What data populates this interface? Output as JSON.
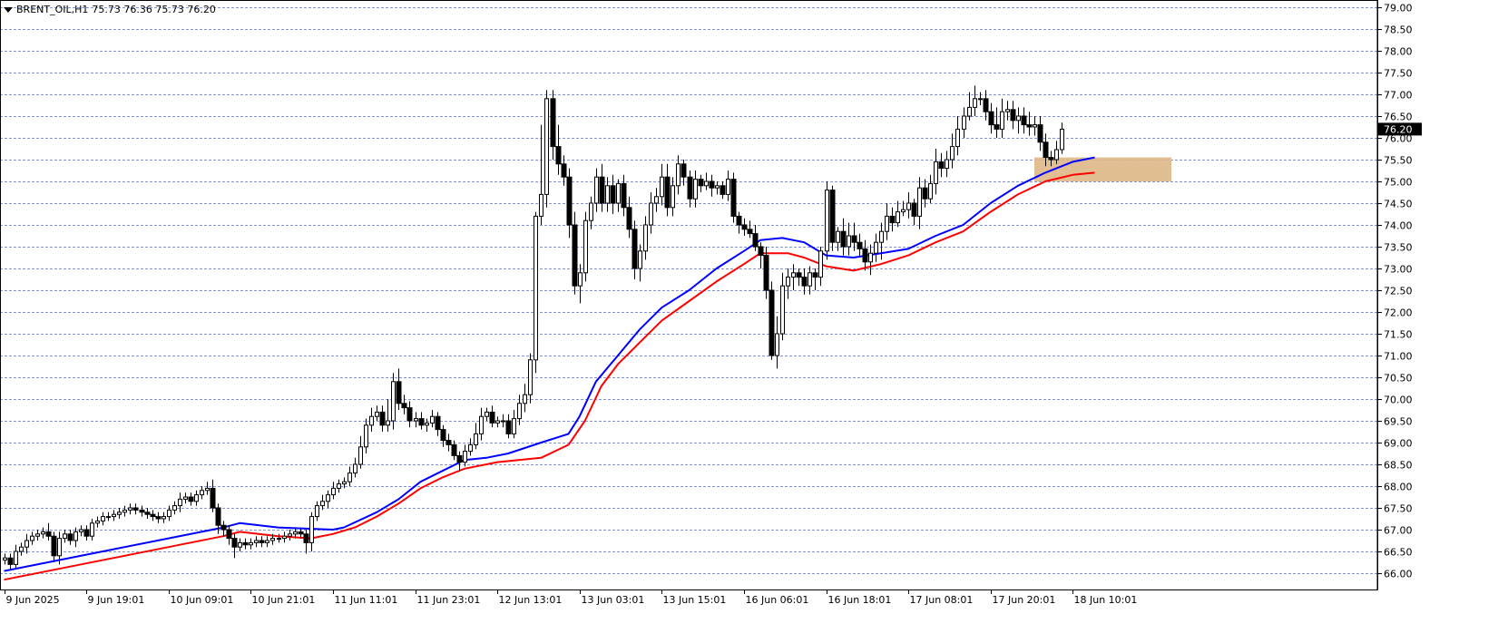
{
  "header": {
    "symbol": "BRENT_OIL,H1",
    "ohlc": "75.73 76.36 75.73 76.20"
  },
  "price_scale": {
    "current_price_label": "76.20"
  },
  "colors": {
    "grid": "#1f3fbf",
    "candle": "#000000",
    "ema_fast": "#0000ff",
    "ema_slow": "#ff0000",
    "zone": "#deb887",
    "label_bg": "#000000",
    "label_text": "#ffffff"
  },
  "chart_data": {
    "type": "candlestick",
    "title": "BRENT_OIL,H1",
    "y_axis": {
      "range": [
        65.9,
        79.05
      ],
      "ticks": [
        "66.00",
        "66.50",
        "67.00",
        "67.50",
        "68.00",
        "68.50",
        "69.00",
        "69.50",
        "70.00",
        "70.50",
        "71.00",
        "71.50",
        "72.00",
        "72.50",
        "73.00",
        "73.50",
        "74.00",
        "74.50",
        "75.00",
        "75.50",
        "76.00",
        "76.50",
        "77.00",
        "77.50",
        "78.00",
        "78.50",
        "79.00"
      ]
    },
    "x_axis": {
      "labels": [
        "9 Jun 2025",
        "9 Jun 19:01",
        "10 Jun 09:01",
        "10 Jun 21:01",
        "11 Jun 11:01",
        "11 Jun 23:01",
        "12 Jun 13:01",
        "13 Jun 03:01",
        "13 Jun 15:01",
        "16 Jun 06:01",
        "16 Jun 18:01",
        "17 Jun 08:01",
        "17 Jun 20:01",
        "18 Jun 10:01"
      ],
      "label_bar_index": [
        0,
        15,
        30,
        45,
        60,
        75,
        90,
        105,
        120,
        135,
        150,
        165,
        180,
        195
      ]
    },
    "grid": true,
    "series": [
      {
        "name": "Fast MA",
        "color": "#0000ff",
        "values": [
          [
            0,
            66.05
          ],
          [
            10,
            66.3
          ],
          [
            20,
            66.55
          ],
          [
            30,
            66.8
          ],
          [
            40,
            67.05
          ],
          [
            43,
            67.15
          ],
          [
            50,
            67.05
          ],
          [
            60,
            67.0
          ],
          [
            62,
            67.05
          ],
          [
            68,
            67.4
          ],
          [
            72,
            67.7
          ],
          [
            76,
            68.1
          ],
          [
            80,
            68.35
          ],
          [
            84,
            68.6
          ],
          [
            88,
            68.65
          ],
          [
            92,
            68.75
          ],
          [
            98,
            69.0
          ],
          [
            103,
            69.2
          ],
          [
            105,
            69.6
          ],
          [
            108,
            70.4
          ],
          [
            112,
            71.0
          ],
          [
            116,
            71.6
          ],
          [
            120,
            72.1
          ],
          [
            125,
            72.5
          ],
          [
            130,
            73.0
          ],
          [
            135,
            73.4
          ],
          [
            138,
            73.65
          ],
          [
            142,
            73.7
          ],
          [
            146,
            73.6
          ],
          [
            150,
            73.3
          ],
          [
            155,
            73.25
          ],
          [
            160,
            73.35
          ],
          [
            165,
            73.45
          ],
          [
            170,
            73.75
          ],
          [
            175,
            74.0
          ],
          [
            180,
            74.5
          ],
          [
            185,
            74.9
          ],
          [
            190,
            75.2
          ],
          [
            195,
            75.45
          ],
          [
            199,
            75.55
          ]
        ]
      },
      {
        "name": "Slow MA",
        "color": "#ff0000",
        "values": [
          [
            0,
            65.85
          ],
          [
            10,
            66.1
          ],
          [
            20,
            66.35
          ],
          [
            30,
            66.6
          ],
          [
            40,
            66.85
          ],
          [
            43,
            66.95
          ],
          [
            50,
            66.85
          ],
          [
            56,
            66.8
          ],
          [
            60,
            66.9
          ],
          [
            64,
            67.05
          ],
          [
            68,
            67.3
          ],
          [
            72,
            67.6
          ],
          [
            76,
            67.95
          ],
          [
            80,
            68.2
          ],
          [
            84,
            68.4
          ],
          [
            90,
            68.55
          ],
          [
            98,
            68.65
          ],
          [
            103,
            68.95
          ],
          [
            106,
            69.5
          ],
          [
            109,
            70.3
          ],
          [
            112,
            70.8
          ],
          [
            116,
            71.3
          ],
          [
            120,
            71.8
          ],
          [
            125,
            72.25
          ],
          [
            130,
            72.7
          ],
          [
            135,
            73.1
          ],
          [
            138,
            73.35
          ],
          [
            143,
            73.35
          ],
          [
            146,
            73.25
          ],
          [
            150,
            73.05
          ],
          [
            155,
            72.95
          ],
          [
            160,
            73.1
          ],
          [
            165,
            73.3
          ],
          [
            170,
            73.6
          ],
          [
            175,
            73.85
          ],
          [
            180,
            74.3
          ],
          [
            185,
            74.7
          ],
          [
            190,
            75.0
          ],
          [
            195,
            75.15
          ],
          [
            199,
            75.2
          ]
        ]
      }
    ],
    "candles": {
      "start": [
        66.3,
        66.35,
        66.2,
        66.5,
        66.6,
        66.75,
        66.85,
        66.9,
        66.95,
        66.85,
        66.4,
        66.8,
        66.9,
        66.75,
        66.95,
        67.0,
        66.85,
        67.15,
        67.2,
        67.3,
        67.3,
        67.35,
        67.4,
        67.45,
        67.5,
        67.45,
        67.4,
        67.35,
        67.3,
        67.25,
        67.3,
        67.45,
        67.55,
        67.7,
        67.75,
        67.65,
        67.8,
        67.9,
        67.95,
        67.5,
        67.1,
        67.0,
        66.8,
        66.6,
        66.7,
        66.65,
        66.7,
        66.75,
        66.7,
        66.75,
        66.8,
        66.8,
        66.85,
        66.9,
        66.95,
        66.9,
        66.7,
        67.3,
        67.55,
        67.65,
        67.8,
        67.95,
        68.05,
        68.1,
        68.3,
        68.5,
        68.9,
        69.4,
        69.6,
        69.7,
        69.4,
        69.5,
        70.4,
        69.9,
        69.8,
        69.5,
        69.55,
        69.4,
        69.45,
        69.6,
        69.3,
        69.05,
        68.95,
        68.7,
        68.55,
        68.8,
        68.95,
        69.2,
        69.6,
        69.7,
        69.45,
        69.5,
        69.5,
        69.2,
        69.55,
        69.9,
        70.1,
        70.9,
        74.2,
        74.7,
        76.9,
        75.8,
        75.4,
        75.1,
        74.0,
        72.6,
        72.9,
        74.1,
        74.5,
        75.1,
        74.5,
        74.9,
        74.5,
        74.95,
        74.4,
        73.9,
        73.0,
        73.4,
        74.0,
        74.5,
        74.65,
        75.1,
        74.4,
        74.9,
        75.4,
        75.1,
        74.6,
        75.05,
        74.9,
        75.0,
        74.85,
        74.9,
        74.7,
        75.05,
        74.2,
        74.0,
        73.9,
        73.8,
        73.5,
        73.3,
        72.5,
        71.0,
        71.5,
        72.6,
        72.8,
        72.9,
        72.8,
        72.6,
        72.9,
        72.8,
        73.4,
        74.8,
        73.6,
        73.85,
        73.5,
        73.75,
        73.6,
        73.45,
        73.15,
        73.35,
        73.6,
        73.85,
        74.2,
        74.05,
        74.3,
        74.35,
        74.5,
        74.2,
        74.85,
        74.6,
        74.95,
        75.45,
        75.3,
        75.5,
        75.8,
        76.2,
        76.5,
        76.7,
        76.9,
        76.9,
        76.6,
        76.3,
        76.2,
        76.6,
        76.65,
        76.4,
        76.5,
        76.3,
        76.25,
        76.3,
        75.9,
        75.55,
        75.5,
        75.73
      ],
      "end": [
        66.35,
        66.2,
        66.5,
        66.6,
        66.75,
        66.85,
        66.9,
        66.95,
        66.85,
        66.4,
        66.8,
        66.9,
        66.75,
        66.95,
        67.0,
        66.85,
        67.15,
        67.2,
        67.3,
        67.3,
        67.35,
        67.4,
        67.45,
        67.5,
        67.45,
        67.4,
        67.35,
        67.3,
        67.25,
        67.3,
        67.45,
        67.55,
        67.7,
        67.75,
        67.65,
        67.8,
        67.9,
        67.95,
        67.5,
        67.1,
        67.0,
        66.8,
        66.6,
        66.7,
        66.65,
        66.7,
        66.75,
        66.7,
        66.75,
        66.8,
        66.8,
        66.85,
        66.9,
        66.95,
        66.9,
        66.7,
        67.3,
        67.55,
        67.65,
        67.8,
        67.95,
        68.05,
        68.1,
        68.3,
        68.5,
        68.9,
        69.4,
        69.6,
        69.7,
        69.4,
        69.5,
        70.4,
        69.9,
        69.8,
        69.5,
        69.55,
        69.4,
        69.45,
        69.6,
        69.3,
        69.05,
        68.95,
        68.7,
        68.55,
        68.8,
        68.95,
        69.2,
        69.6,
        69.7,
        69.45,
        69.5,
        69.5,
        69.2,
        69.55,
        69.9,
        70.1,
        70.9,
        74.2,
        74.7,
        76.9,
        75.8,
        75.4,
        75.1,
        74.0,
        72.6,
        72.9,
        74.1,
        74.5,
        75.1,
        74.5,
        74.9,
        74.5,
        74.95,
        74.4,
        73.9,
        73.0,
        73.4,
        74.0,
        74.5,
        74.65,
        75.1,
        74.4,
        74.9,
        75.4,
        75.1,
        74.6,
        75.05,
        74.9,
        75.0,
        74.85,
        74.9,
        74.7,
        75.05,
        74.2,
        74.0,
        73.9,
        73.8,
        73.5,
        73.3,
        72.5,
        71.0,
        71.5,
        72.6,
        72.8,
        72.9,
        72.8,
        72.6,
        72.9,
        72.8,
        73.4,
        74.8,
        73.6,
        73.85,
        73.5,
        73.75,
        73.6,
        73.45,
        73.15,
        73.35,
        73.6,
        73.85,
        74.2,
        74.05,
        74.3,
        74.35,
        74.5,
        74.2,
        74.85,
        74.6,
        74.95,
        75.45,
        75.3,
        75.5,
        75.8,
        76.2,
        76.5,
        76.7,
        76.9,
        76.9,
        76.6,
        76.3,
        76.2,
        76.6,
        76.65,
        76.4,
        76.5,
        76.3,
        76.25,
        76.3,
        75.9,
        75.55,
        75.5,
        75.73,
        76.2
      ],
      "hi_add": [
        0.1,
        0.1,
        0.15,
        0.1,
        0.15,
        0.1,
        0.1,
        0.1,
        0.2,
        0.1,
        0.15,
        0.1,
        0.1,
        0.1,
        0.1,
        0.1,
        0.1,
        0.1,
        0.1,
        0.1,
        0.1,
        0.1,
        0.1,
        0.1,
        0.1,
        0.1,
        0.1,
        0.1,
        0.1,
        0.1,
        0.1,
        0.1,
        0.15,
        0.1,
        0.1,
        0.1,
        0.1,
        0.15,
        0.2,
        0.1,
        0.1,
        0.1,
        0.1,
        0.1,
        0.1,
        0.1,
        0.1,
        0.1,
        0.1,
        0.1,
        0.1,
        0.1,
        0.1,
        0.1,
        0.1,
        0.1,
        0.1,
        0.1,
        0.15,
        0.1,
        0.15,
        0.1,
        0.1,
        0.15,
        0.15,
        0.25,
        0.15,
        0.2,
        0.15,
        0.15,
        0.5,
        0.2,
        0.3,
        0.2,
        0.15,
        0.15,
        0.15,
        0.1,
        0.15,
        0.1,
        0.1,
        0.15,
        0.1,
        0.1,
        0.15,
        0.15,
        0.25,
        0.2,
        0.1,
        0.15,
        0.1,
        0.15,
        0.15,
        0.2,
        0.2,
        0.25,
        0.15,
        0.1,
        1.6,
        0.2,
        0.2,
        0.5,
        0.2,
        0.2,
        0.3,
        0.2,
        0.2,
        0.15,
        0.2,
        0.3,
        0.2,
        0.25,
        0.1,
        0.2,
        0.25,
        0.2,
        0.15,
        0.2,
        0.25,
        0.2,
        0.3,
        0.3,
        0.2,
        0.2,
        0.1,
        0.15,
        0.2,
        0.1,
        0.2,
        0.15,
        0.1,
        0.1,
        0.2,
        0.15,
        0.1,
        0.15,
        0.2,
        0.2,
        0.1,
        0.2,
        0.2,
        0.4,
        0.3,
        0.2,
        0.2,
        0.1,
        0.2,
        0.15,
        0.1,
        0.1,
        0.2,
        0.1,
        0.1,
        0.3,
        0.3,
        0.3,
        0.2,
        0.2,
        0.2,
        0.2,
        0.2,
        0.3,
        0.2,
        0.25,
        0.2,
        0.25,
        0.1,
        0.25,
        0.2,
        0.2,
        0.3,
        0.2,
        0.2,
        0.3,
        0.3,
        0.2,
        0.35,
        0.3,
        0.15,
        0.2,
        0.2,
        0.4,
        0.3,
        0.2,
        0.2,
        0.2,
        0.2,
        0.3,
        0.2,
        0.2,
        0.2,
        0.15,
        0.2,
        0.15,
        0.16
      ],
      "lo_sub": [
        0.1,
        0.1,
        0.1,
        0.1,
        0.15,
        0.1,
        0.1,
        0.1,
        0.1,
        0.15,
        0.2,
        0.1,
        0.1,
        0.15,
        0.1,
        0.1,
        0.1,
        0.1,
        0.1,
        0.1,
        0.1,
        0.1,
        0.1,
        0.1,
        0.1,
        0.1,
        0.1,
        0.1,
        0.1,
        0.1,
        0.1,
        0.1,
        0.15,
        0.1,
        0.1,
        0.1,
        0.1,
        0.1,
        0.1,
        0.2,
        0.15,
        0.15,
        0.25,
        0.1,
        0.1,
        0.1,
        0.1,
        0.1,
        0.1,
        0.1,
        0.1,
        0.1,
        0.1,
        0.1,
        0.1,
        0.25,
        0.2,
        0.1,
        0.1,
        0.15,
        0.1,
        0.1,
        0.1,
        0.1,
        0.1,
        0.1,
        0.15,
        0.15,
        0.1,
        0.15,
        0.15,
        0.2,
        0.15,
        0.15,
        0.15,
        0.15,
        0.1,
        0.15,
        0.1,
        0.15,
        0.15,
        0.15,
        0.1,
        0.2,
        0.1,
        0.1,
        0.1,
        0.15,
        0.1,
        0.1,
        0.1,
        0.15,
        0.1,
        0.1,
        0.15,
        0.2,
        0.2,
        0.3,
        0.2,
        0.3,
        0.3,
        0.25,
        0.2,
        0.3,
        0.2,
        0.4,
        0.2,
        0.2,
        0.2,
        0.2,
        0.2,
        0.25,
        0.2,
        0.2,
        0.2,
        0.25,
        0.3,
        0.2,
        0.2,
        0.2,
        0.2,
        0.2,
        0.2,
        0.2,
        0.2,
        0.2,
        0.2,
        0.15,
        0.1,
        0.2,
        0.15,
        0.1,
        0.15,
        0.15,
        0.2,
        0.15,
        0.1,
        0.1,
        0.3,
        0.2,
        0.1,
        0.3,
        0.15,
        0.3,
        0.3,
        0.2,
        0.2,
        0.2,
        0.3,
        0.2,
        0.2,
        0.2,
        0.2,
        0.2,
        0.2,
        0.2,
        0.2,
        0.2,
        0.3,
        0.2,
        0.4,
        0.2,
        0.2,
        0.1,
        0.1,
        0.2,
        0.2,
        0.3,
        0.2,
        0.1,
        0.25,
        0.2,
        0.2,
        0.2,
        0.2,
        0.2,
        0.1,
        0.2,
        0.15,
        0.2,
        0.2,
        0.2,
        0.2,
        0.2,
        0.2,
        0.3,
        0.2,
        0.2,
        0.2,
        0.2,
        0.2,
        0.15,
        0.0
      ]
    },
    "zone": {
      "price_top": 75.55,
      "price_bottom": 75.0,
      "start_bar": 188,
      "end_bar": 213
    }
  }
}
